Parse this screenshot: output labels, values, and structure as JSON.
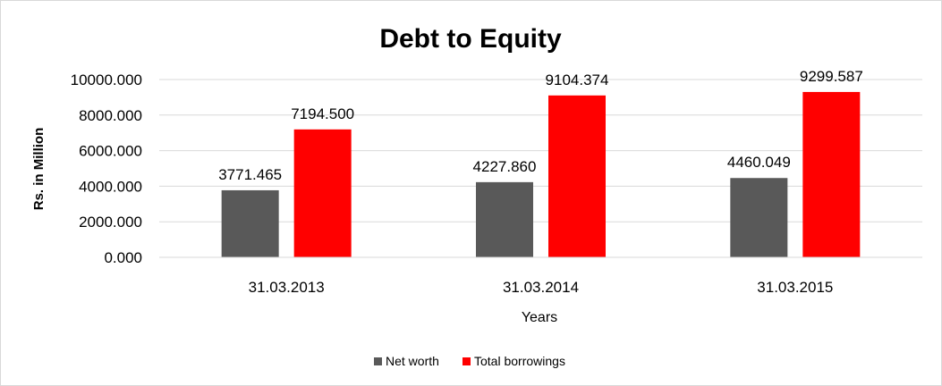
{
  "chart_data": {
    "type": "bar",
    "title": "Debt to Equity",
    "xlabel": "Years",
    "ylabel": "Rs. in Million",
    "categories": [
      "31.03.2013",
      "31.03.2014",
      "31.03.2015"
    ],
    "series": [
      {
        "name": "Net worth",
        "color": "#595959",
        "values": [
          3771.465,
          4227.86,
          4460.049
        ],
        "labels": [
          "3771.465",
          "4227.860",
          "4460.049"
        ]
      },
      {
        "name": "Total borrowings",
        "color": "#ff0000",
        "values": [
          7194.5,
          9104.374,
          9299.587
        ],
        "labels": [
          "7194.500",
          "9104.374",
          "9299.587"
        ]
      }
    ],
    "ylim": [
      0,
      10000
    ],
    "yticks": [
      0,
      2000,
      4000,
      6000,
      8000,
      10000
    ],
    "ytick_labels": [
      "0.000",
      "2000.000",
      "4000.000",
      "6000.000",
      "8000.000",
      "10000.000"
    ],
    "grid": true,
    "legend_position": "bottom"
  }
}
